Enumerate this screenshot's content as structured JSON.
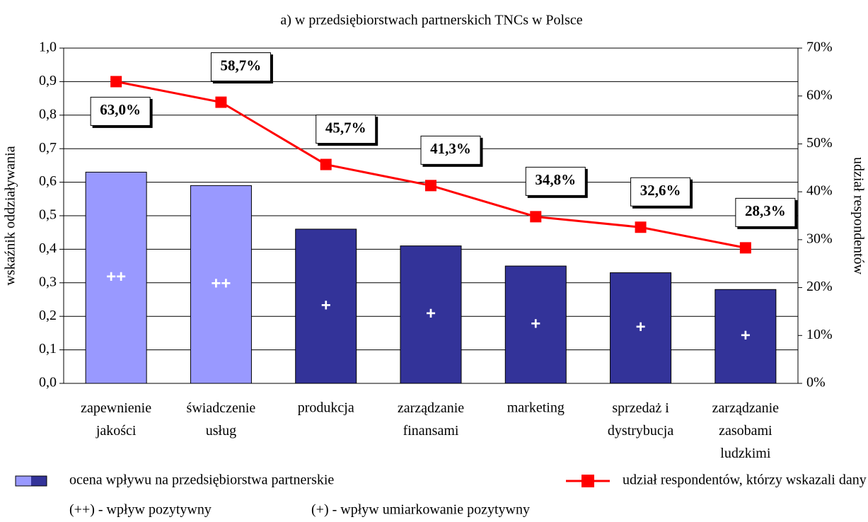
{
  "chart_data": {
    "type": "bar_line",
    "title": "a) w przedsiębiorstwach partnerskich TNCs w Polsce",
    "ylabel": "wskaźnik oddziaływania",
    "y2label": "udział respondentów",
    "categories": [
      "zapewnienie\njakości",
      "świadczenie\nusług",
      "produkcja",
      "zarządzanie\nfinansami",
      "marketing",
      "sprzedaż i\ndystrybucja",
      "zarządzanie\nzasobami\nludzkimi"
    ],
    "series": [
      {
        "name": "ocena wpływu na przedsiębiorstwa partnerskie",
        "type": "bar",
        "color": "#333399",
        "colors": [
          "#9999ff",
          "#9999ff",
          "#333399",
          "#333399",
          "#333399",
          "#333399",
          "#333399"
        ],
        "values": [
          0.63,
          0.59,
          0.46,
          0.41,
          0.35,
          0.33,
          0.28
        ],
        "bar_labels": [
          "++",
          "++",
          "+",
          "+",
          "+",
          "+",
          "+"
        ]
      },
      {
        "name": "udział respondentów, którzy wskazali dany obszar",
        "type": "line",
        "axis": "y2",
        "color": "#ff0000",
        "values": [
          63.0,
          58.7,
          45.7,
          41.3,
          34.8,
          32.6,
          28.3
        ],
        "value_labels": [
          "63,0%",
          "58,7%",
          "45,7%",
          "41,3%",
          "34,8%",
          "32,6%",
          "28,3%"
        ]
      }
    ],
    "ylim": [
      0,
      1
    ],
    "yticks": [
      {
        "value": 0,
        "label": "0,0"
      },
      {
        "value": 0.1,
        "label": "0,1"
      },
      {
        "value": 0.2,
        "label": "0,2"
      },
      {
        "value": 0.3,
        "label": "0,3"
      },
      {
        "value": 0.4,
        "label": "0,4"
      },
      {
        "value": 0.5,
        "label": "0,5"
      },
      {
        "value": 0.6,
        "label": "0,6"
      },
      {
        "value": 0.7,
        "label": "0,7"
      },
      {
        "value": 0.8,
        "label": "0,8"
      },
      {
        "value": 0.9,
        "label": "0,9"
      },
      {
        "value": 1,
        "label": "1,0"
      }
    ],
    "y2lim": [
      0,
      70
    ],
    "y2ticks": [
      {
        "value": 0,
        "label": "0%"
      },
      {
        "value": 10,
        "label": "10%"
      },
      {
        "value": 20,
        "label": "20%"
      },
      {
        "value": 30,
        "label": "30%"
      },
      {
        "value": 40,
        "label": "40%"
      },
      {
        "value": 50,
        "label": "50%"
      },
      {
        "value": 60,
        "label": "60%"
      },
      {
        "value": 70,
        "label": "70%"
      }
    ],
    "grid": true,
    "notes": [
      "(++) - wpływ pozytywny",
      "(+) - wpływ umiarkowanie pozytywny"
    ]
  }
}
